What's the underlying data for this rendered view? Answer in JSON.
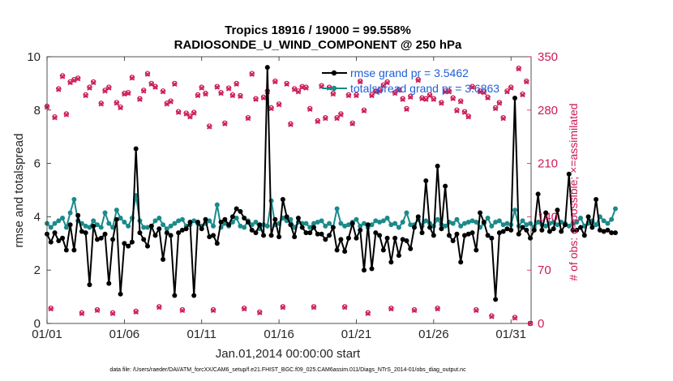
{
  "chart_data": {
    "type": "line",
    "title": "Tropics 18916 / 19000 = 99.558%",
    "subtitle": "RADIOSONDE_U_WIND_COMPONENT @ 250 hPa",
    "xlabel": "Jan.01,2014 00:00:00 start",
    "ylabel": "rmse and totalspread",
    "ylabel_right": "# of obs: o=possible; ×=assimilated",
    "xlim": [
      0,
      31.3
    ],
    "ylim": [
      0,
      10
    ],
    "ylim_right": [
      0,
      350
    ],
    "x_ticks": [
      0,
      5,
      10,
      15,
      20,
      25,
      30
    ],
    "x_tick_labels": [
      "01/01",
      "01/06",
      "01/11",
      "01/16",
      "01/21",
      "01/26",
      "01/31"
    ],
    "y_ticks": [
      0,
      2,
      4,
      6,
      8,
      10
    ],
    "y_tick_labels_right": [
      "0",
      "70",
      "140",
      "210",
      "280",
      "350"
    ],
    "footnote": "data file: /Users/raeder/DAI/ATM_forcXX/CAM6_setup/f.e21.FHIST_BGC.f09_025.CAM6assim.011/Diags_NTrS_2014-01/obs_diag_output.nc",
    "colors": {
      "rmse": "#000000",
      "spread": "#1a8a8a",
      "obs": "#cc1a55",
      "legend_text": "#1f5fd6"
    },
    "series": [
      {
        "name": "rmse",
        "legend": "rmse grand pr = 3.5462",
        "values": [
          3.35,
          3.05,
          3.4,
          3.1,
          3.2,
          2.75,
          3.7,
          2.75,
          4.05,
          3.45,
          3.4,
          1.45,
          3.65,
          3.15,
          3.2,
          3.35,
          1.5,
          3.15,
          3.9,
          1.1,
          3.0,
          2.9,
          3.05,
          6.55,
          3.4,
          3.15,
          2.9,
          3.65,
          3.3,
          3.55,
          2.4,
          3.4,
          3.3,
          1.05,
          3.4,
          3.5,
          3.55,
          3.8,
          1.05,
          3.8,
          3.55,
          3.9,
          3.25,
          3.3,
          3.0,
          3.8,
          3.9,
          3.7,
          4.0,
          4.3,
          4.2,
          3.95,
          3.8,
          3.5,
          3.4,
          3.7,
          3.3,
          9.6,
          3.3,
          3.9,
          3.25,
          4.65,
          4.0,
          3.7,
          3.25,
          3.95,
          3.6,
          3.4,
          3.4,
          3.6,
          3.35,
          3.35,
          3.15,
          3.3,
          3.6,
          2.75,
          3.15,
          2.7,
          3.2,
          3.75,
          3.2,
          3.5,
          2.0,
          3.7,
          2.05,
          3.4,
          3.3,
          2.75,
          3.2,
          2.3,
          3.2,
          2.55,
          3.15,
          3.1,
          2.8,
          3.6,
          4.0,
          3.4,
          5.35,
          3.6,
          3.3,
          5.9,
          3.55,
          5.15,
          3.3,
          3.1,
          3.35,
          2.3,
          3.3,
          3.35,
          3.4,
          2.75,
          4.15,
          3.8,
          3.3,
          3.2,
          0.9,
          3.4,
          3.45,
          3.55,
          3.5,
          8.45,
          3.35,
          3.6,
          3.5,
          3.2,
          3.5,
          4.85,
          3.5,
          4.15,
          3.45,
          3.55,
          4.25,
          3.45,
          3.7,
          5.6,
          3.5,
          3.5,
          3.6,
          3.3,
          4.0,
          3.6,
          4.65,
          3.5,
          3.45,
          3.5,
          3.4,
          3.4
        ],
        "start_x": 0.0,
        "step_x": 0.25
      },
      {
        "name": "totalspread",
        "legend": "totalspread grand pr = 3.6863",
        "values": [
          3.75,
          3.6,
          3.75,
          3.85,
          3.95,
          3.6,
          4.15,
          4.65,
          3.85,
          3.75,
          3.65,
          3.6,
          3.85,
          3.7,
          3.6,
          4.15,
          3.75,
          3.6,
          4.25,
          3.95,
          3.8,
          3.65,
          3.95,
          4.8,
          3.85,
          3.6,
          3.6,
          3.65,
          3.85,
          3.95,
          3.7,
          3.55,
          3.65,
          3.75,
          3.85,
          3.9,
          3.65,
          3.7,
          3.85,
          3.75,
          3.65,
          3.75,
          3.85,
          3.65,
          4.45,
          3.6,
          3.75,
          3.65,
          3.8,
          3.95,
          3.65,
          3.6,
          3.85,
          3.7,
          3.8,
          3.55,
          3.7,
          3.65,
          4.6,
          3.7,
          3.75,
          3.95,
          3.85,
          3.9,
          3.6,
          3.8,
          3.75,
          3.75,
          3.6,
          3.75,
          3.8,
          3.85,
          3.65,
          3.75,
          3.6,
          4.3,
          3.75,
          3.65,
          3.7,
          3.8,
          3.9,
          3.65,
          3.75,
          3.6,
          3.7,
          3.85,
          3.8,
          3.85,
          3.95,
          3.7,
          3.75,
          3.6,
          3.8,
          4.15,
          3.7,
          3.7,
          3.9,
          3.65,
          3.85,
          3.75,
          3.65,
          3.9,
          3.7,
          3.65,
          3.8,
          3.75,
          3.9,
          3.65,
          3.75,
          3.8,
          3.85,
          3.8,
          3.6,
          3.75,
          3.95,
          3.65,
          3.8,
          3.85,
          3.7,
          3.75,
          3.7,
          4.25,
          3.65,
          3.85,
          3.7,
          3.75,
          3.6,
          3.8,
          3.7,
          3.65,
          3.75,
          3.8,
          3.7,
          3.8,
          3.75,
          3.65,
          3.75,
          3.8,
          3.95,
          3.65,
          3.75,
          3.85,
          3.7,
          4.0,
          3.85,
          3.75,
          3.9,
          4.3
        ],
        "start_x": 0.0,
        "step_x": 0.25
      },
      {
        "name": "obs_possible",
        "marker": "o",
        "x": [
          0.0,
          0.5,
          1.0,
          1.5,
          2.0,
          2.5,
          3.0,
          3.5,
          4.0,
          4.5,
          5.0,
          5.5,
          6.0,
          6.5,
          7.0,
          7.5,
          8.0,
          8.5,
          9.0,
          9.5,
          10.0,
          10.5,
          11.0,
          11.5,
          12.0,
          12.5,
          13.0,
          13.5,
          14.0,
          14.5,
          15.0,
          15.5,
          16.0,
          16.5,
          17.0,
          17.5,
          18.0,
          18.5,
          19.0,
          19.5,
          20.0,
          20.5,
          21.0,
          21.5,
          22.0,
          22.5,
          23.0,
          23.5,
          24.0,
          24.5,
          25.0,
          25.5,
          26.0,
          26.5,
          27.0,
          27.5,
          28.0,
          28.5,
          29.0,
          29.5,
          30.0,
          30.5,
          31.0,
          0.25,
          0.75,
          1.25,
          1.75,
          2.25,
          2.75,
          3.25,
          3.75,
          4.25,
          4.75,
          5.25,
          5.75,
          6.25,
          6.75,
          7.25,
          7.75,
          8.25,
          8.75,
          9.25,
          9.75,
          10.25,
          10.75,
          11.25,
          11.75,
          12.25,
          12.75,
          13.25,
          13.75,
          14.25,
          14.75,
          15.25,
          15.75,
          16.25,
          16.75,
          17.25,
          17.75,
          18.25,
          18.75,
          19.25,
          19.75,
          20.25,
          20.75,
          21.25,
          21.75,
          22.25,
          22.75,
          23.25,
          23.75,
          24.25,
          24.75,
          25.25,
          25.75,
          26.25,
          26.75,
          27.25,
          27.75,
          28.25,
          28.75,
          29.25,
          29.75,
          30.25,
          30.75,
          31.25
        ],
        "y": [
          285,
          271,
          325,
          317,
          322,
          300,
          317,
          289,
          310,
          290,
          302,
          323,
          295,
          328,
          311,
          305,
          292,
          278,
          276,
          277,
          310,
          259,
          311,
          263,
          300,
          299,
          270,
          295,
          297,
          283,
          288,
          315,
          308,
          311,
          282,
          266,
          270,
          302,
          275,
          300,
          300,
          280,
          300,
          306,
          317,
          303,
          295,
          298,
          320,
          295,
          295,
          290,
          305,
          280,
          278,
          311,
          305,
          297,
          283,
          270,
          310,
          335,
          318,
          20,
          308,
          275,
          320,
          14,
          310,
          18,
          306,
          14,
          284,
          303,
          16,
          306,
          315,
          22,
          289,
          315,
          18,
          272,
          300,
          302,
          18,
          303,
          309,
          315,
          20,
          328,
          15,
          305,
          318,
          22,
          262,
          305,
          310,
          22,
          312,
          310,
          270,
          22,
          263,
          318,
          14,
          305,
          313,
          20,
          307,
          282,
          18,
          296,
          300,
          20,
          305,
          296,
          292,
          272,
          18,
          304,
          10,
          290,
          305,
          8,
          301,
          0
        ]
      },
      {
        "name": "obs_assimilated",
        "marker": "x",
        "x": [
          0.0,
          0.5,
          1.0,
          1.5,
          2.0,
          2.5,
          3.0,
          3.5,
          4.0,
          4.5,
          5.0,
          5.5,
          6.0,
          6.5,
          7.0,
          7.5,
          8.0,
          8.5,
          9.0,
          9.5,
          10.0,
          10.5,
          11.0,
          11.5,
          12.0,
          12.5,
          13.0,
          13.5,
          14.0,
          14.5,
          15.0,
          15.5,
          16.0,
          16.5,
          17.0,
          17.5,
          18.0,
          18.5,
          19.0,
          19.5,
          20.0,
          20.5,
          21.0,
          21.5,
          22.0,
          22.5,
          23.0,
          23.5,
          24.0,
          24.5,
          25.0,
          25.5,
          26.0,
          26.5,
          27.0,
          27.5,
          28.0,
          28.5,
          29.0,
          29.5,
          30.0,
          30.5,
          31.0,
          0.25,
          0.75,
          1.25,
          1.75,
          2.25,
          2.75,
          3.25,
          3.75,
          4.25,
          4.75,
          5.25,
          5.75,
          6.25,
          6.75,
          7.25,
          7.75,
          8.25,
          8.75,
          9.25,
          9.75,
          10.25,
          10.75,
          11.25,
          11.75,
          12.25,
          12.75,
          13.25,
          13.75,
          14.25,
          14.75,
          15.25,
          15.75,
          16.25,
          16.75,
          17.25,
          17.75,
          18.25,
          18.75,
          19.25,
          19.75,
          20.25,
          20.75,
          21.25,
          21.75,
          22.25,
          22.75,
          23.25,
          23.75,
          24.25,
          24.75,
          25.25,
          25.75,
          26.25,
          26.75,
          27.25,
          27.75,
          28.25,
          28.75,
          29.25,
          29.75,
          30.25,
          30.75,
          31.25
        ],
        "y": [
          284,
          270,
          324,
          316,
          321,
          299,
          316,
          288,
          309,
          289,
          301,
          322,
          294,
          327,
          310,
          304,
          291,
          277,
          275,
          276,
          309,
          258,
          310,
          262,
          299,
          298,
          269,
          294,
          296,
          282,
          287,
          314,
          307,
          310,
          281,
          265,
          269,
          301,
          274,
          299,
          299,
          279,
          299,
          305,
          316,
          302,
          294,
          297,
          319,
          294,
          294,
          289,
          304,
          279,
          277,
          310,
          304,
          296,
          282,
          269,
          309,
          334,
          317,
          19,
          307,
          274,
          319,
          13,
          309,
          17,
          305,
          13,
          283,
          302,
          15,
          305,
          314,
          21,
          288,
          314,
          17,
          271,
          299,
          301,
          17,
          302,
          308,
          314,
          19,
          327,
          14,
          304,
          317,
          21,
          261,
          304,
          309,
          21,
          311,
          309,
          269,
          21,
          262,
          317,
          13,
          304,
          312,
          19,
          306,
          281,
          17,
          295,
          299,
          19,
          304,
          295,
          291,
          271,
          17,
          303,
          9,
          289,
          304,
          7,
          300,
          0
        ]
      }
    ]
  }
}
